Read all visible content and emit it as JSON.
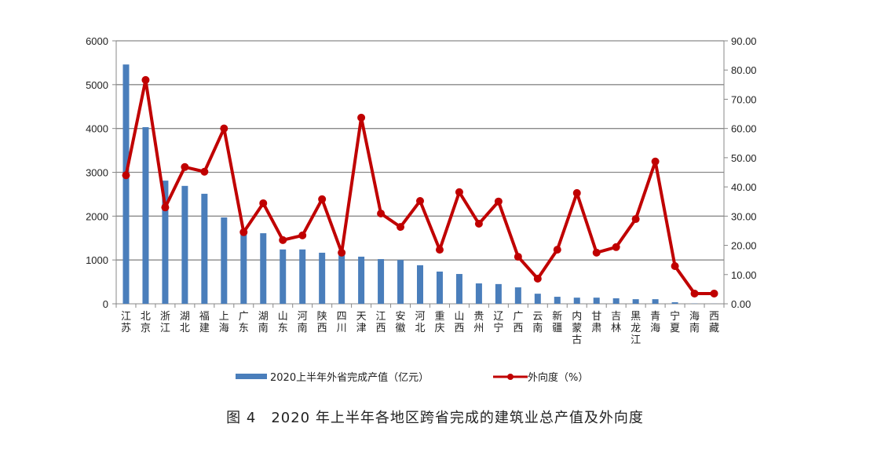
{
  "chart_data": {
    "type": "bar+line",
    "title": "图 4　2020 年上半年各地区跨省完成的建筑业总产值及外向度",
    "categories": [
      "江苏",
      "北京",
      "浙江",
      "湖北",
      "福建",
      "上海",
      "广东",
      "湖南",
      "山东",
      "河南",
      "陕西",
      "四川",
      "天津",
      "江西",
      "安徽",
      "河北",
      "重庆",
      "山西",
      "贵州",
      "辽宁",
      "广西",
      "云南",
      "新疆",
      "内蒙古",
      "甘肃",
      "吉林",
      "黑龙江",
      "青海",
      "宁夏",
      "海南",
      "西藏"
    ],
    "series": [
      {
        "name": "2020上半年外省完成产值（亿元）",
        "type": "bar",
        "axis": "left",
        "color": "#4a7ebb",
        "values": [
          5460,
          4030,
          2810,
          2690,
          2510,
          1970,
          1680,
          1610,
          1240,
          1240,
          1165,
          1110,
          1075,
          1020,
          1000,
          880,
          735,
          680,
          465,
          450,
          375,
          230,
          160,
          140,
          140,
          125,
          105,
          105,
          35,
          5,
          2
        ]
      },
      {
        "name": "外向度（%）",
        "type": "line",
        "axis": "right",
        "color": "#c00000",
        "values": [
          44.0,
          76.6,
          33.0,
          46.8,
          45.2,
          60.0,
          24.5,
          34.4,
          21.8,
          23.4,
          35.8,
          17.5,
          63.7,
          30.9,
          26.3,
          35.2,
          18.5,
          38.2,
          27.4,
          35.0,
          16.1,
          8.6,
          18.5,
          37.9,
          17.5,
          19.4,
          29.0,
          48.7,
          12.9,
          3.5,
          3.5
        ]
      }
    ],
    "y_left": {
      "lim": [
        0,
        6000
      ],
      "ticks": [
        "0",
        "1000",
        "2000",
        "3000",
        "4000",
        "5000",
        "6000"
      ]
    },
    "y_right": {
      "lim": [
        0,
        90
      ],
      "ticks": [
        "0.00",
        "10.00",
        "20.00",
        "30.00",
        "40.00",
        "50.00",
        "60.00",
        "70.00",
        "80.00",
        "90.00"
      ]
    },
    "grid": true,
    "legend_position": "bottom"
  }
}
